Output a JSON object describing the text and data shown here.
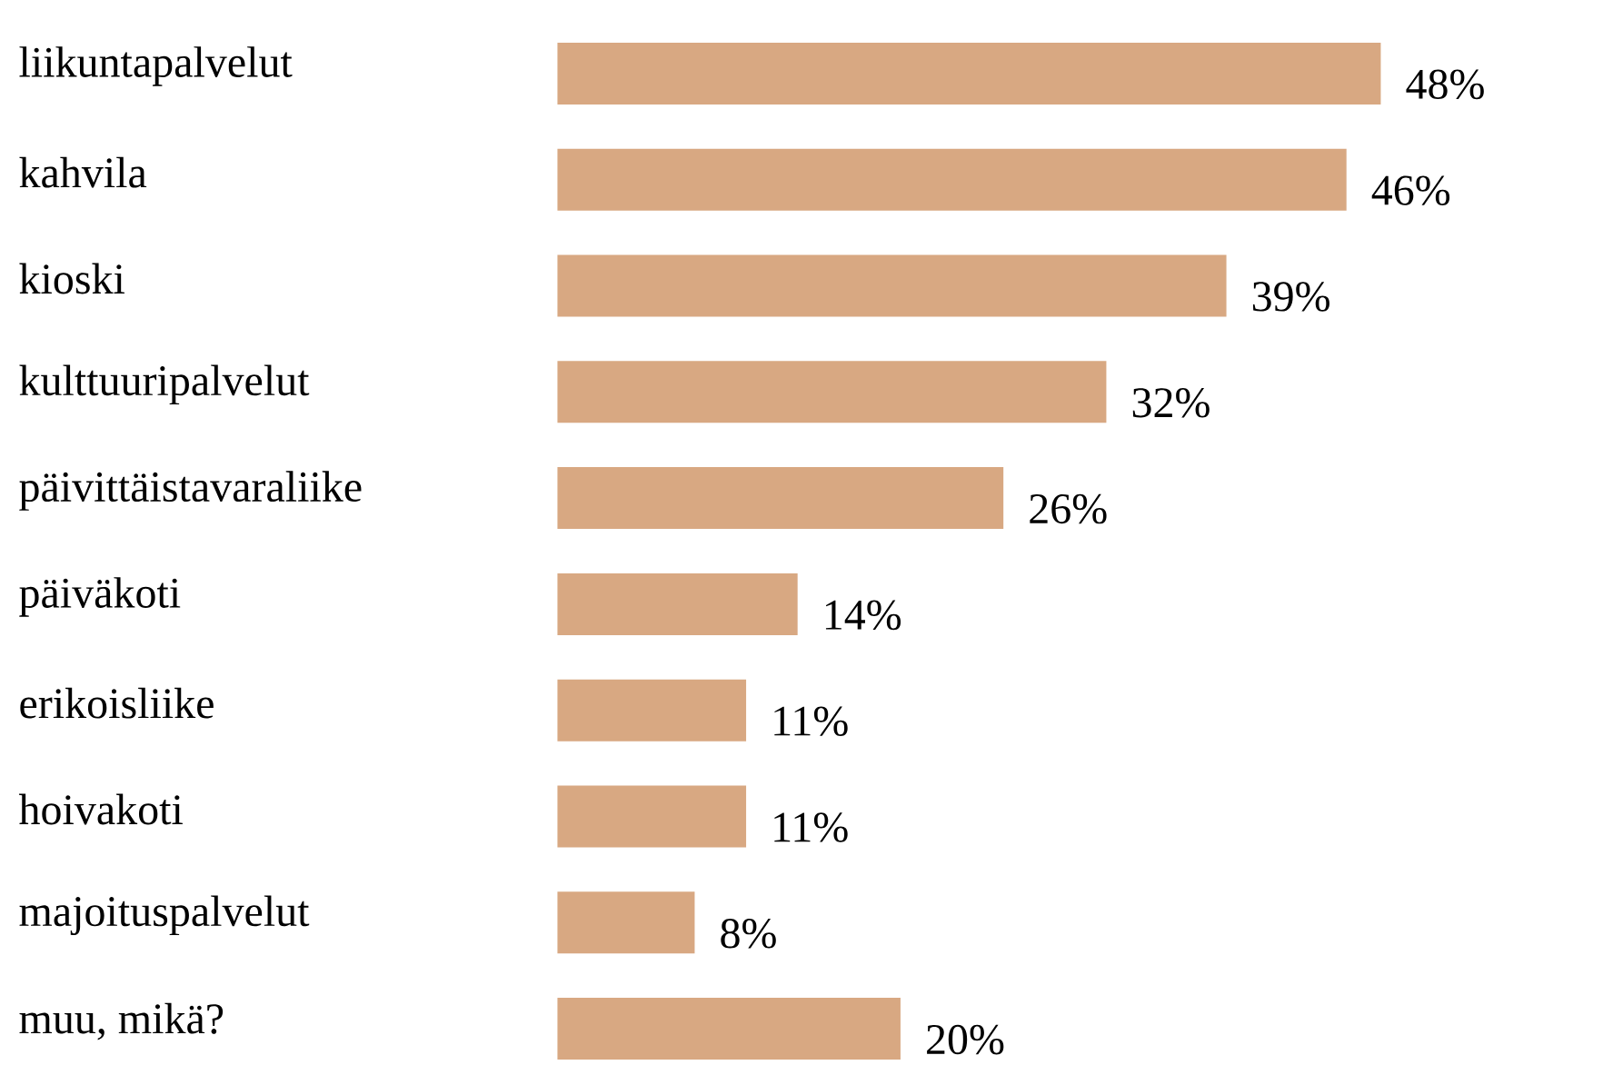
{
  "chart_data": {
    "type": "bar",
    "orientation": "horizontal",
    "categories": [
      "liikuntapalvelut",
      "kahvila",
      "kioski",
      "kulttuuripalvelut",
      "päivittäistavaraliike",
      "päiväkoti",
      "erikoisliike",
      "hoivakoti",
      "majoituspalvelut",
      "muu, mikä?"
    ],
    "values": [
      48,
      46,
      39,
      32,
      26,
      14,
      11,
      11,
      8,
      20
    ],
    "value_labels": [
      "48%",
      "46%",
      "39%",
      "32%",
      "26%",
      "14%",
      "11%",
      "11%",
      "8%",
      "20%"
    ],
    "color": "#d8a882"
  }
}
